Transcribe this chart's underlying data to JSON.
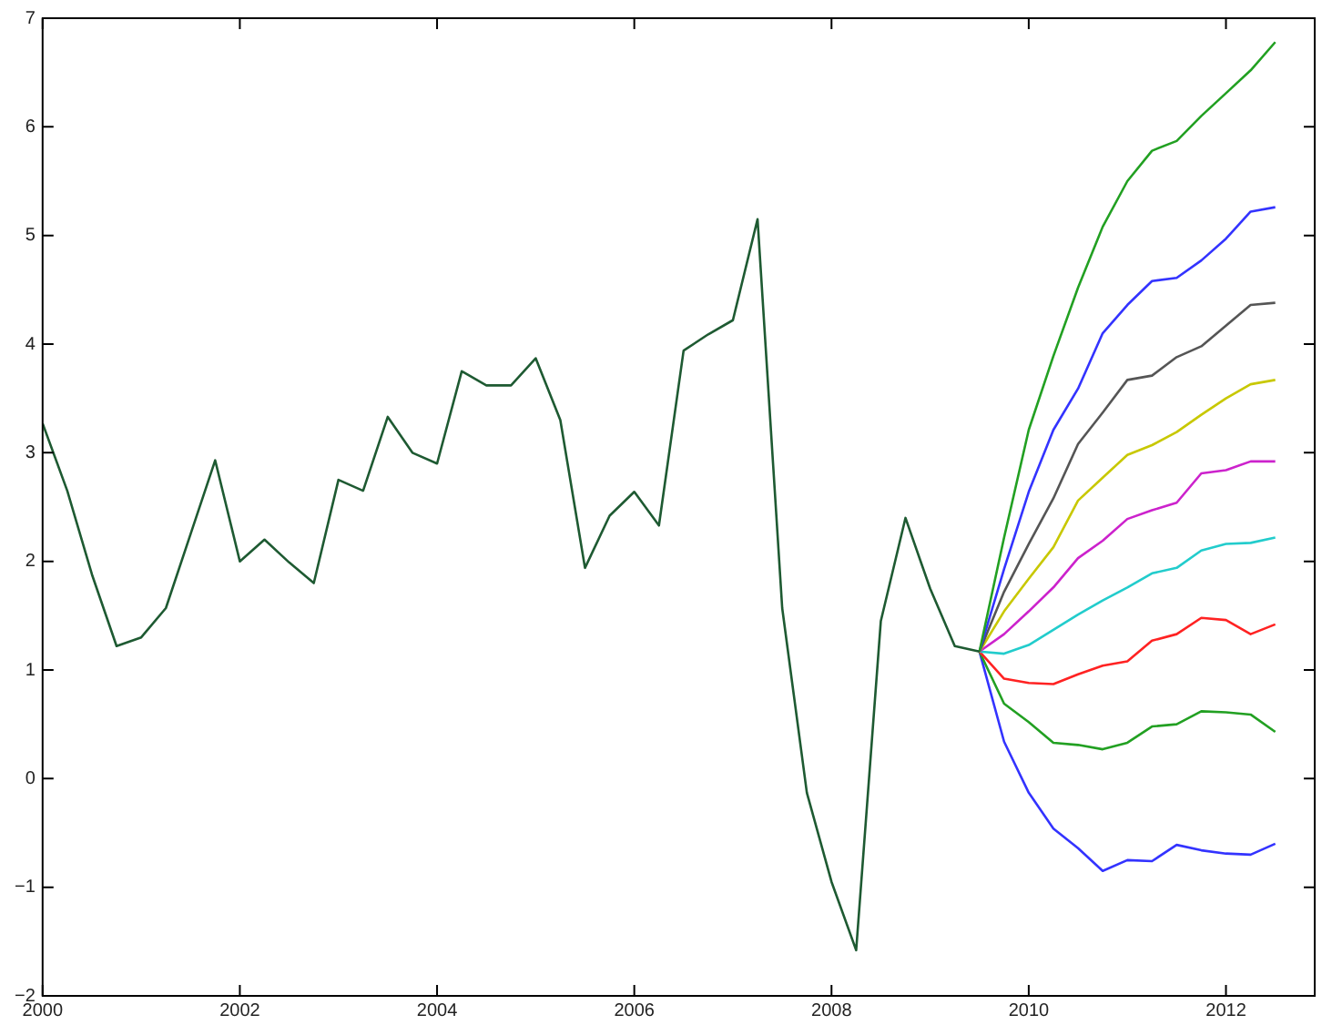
{
  "chart_data": {
    "type": "line",
    "marker": "none",
    "xlim": [
      2000,
      2012.9
    ],
    "xticks": [
      2000,
      2002,
      2004,
      2006,
      2008,
      2010,
      2012
    ],
    "ylim": [
      -2,
      7
    ],
    "yticks": [
      -2,
      -1,
      0,
      1,
      2,
      3,
      4,
      5,
      6,
      7
    ],
    "series": [
      {
        "color": "#1e5a32",
        "x": [
          2000,
          2000.25,
          2000.5,
          2000.75,
          2001,
          2001.25,
          2001.5,
          2001.75,
          2002,
          2002.25,
          2002.5,
          2002.75,
          2003,
          2003.25,
          2003.5,
          2003.75,
          2004,
          2004.25,
          2004.5,
          2004.75,
          2005,
          2005.25,
          2005.5,
          2005.75,
          2006,
          2006.25,
          2006.5,
          2006.75,
          2007,
          2007.25,
          2007.5,
          2007.75,
          2008,
          2008.25,
          2008.5,
          2008.75,
          2009,
          2009.25,
          2009.5
        ],
        "values": [
          3.27,
          2.65,
          1.88,
          1.22,
          1.3,
          1.57,
          2.25,
          2.93,
          2.0,
          2.2,
          1.99,
          1.8,
          2.75,
          2.65,
          3.33,
          3.0,
          2.9,
          3.75,
          3.62,
          3.62,
          3.87,
          3.3,
          1.94,
          2.42,
          2.64,
          2.33,
          3.94,
          4.09,
          4.22,
          5.15,
          1.57,
          -0.13,
          -0.95,
          -1.58,
          1.45,
          2.4,
          1.75,
          1.22,
          1.17
        ]
      },
      {
        "color": "#22a022",
        "x": [
          2009.5,
          2009.75,
          2010,
          2010.25,
          2010.5,
          2010.75,
          2011,
          2011.25,
          2011.5,
          2011.75,
          2012,
          2012.25,
          2012.5
        ],
        "values": [
          1.17,
          2.22,
          3.21,
          3.89,
          4.52,
          5.08,
          5.5,
          5.78,
          5.87,
          6.1,
          6.31,
          6.52,
          6.78
        ]
      },
      {
        "color": "#3333ff",
        "x": [
          2009.5,
          2009.75,
          2010,
          2010.25,
          2010.5,
          2010.75,
          2011,
          2011.25,
          2011.5,
          2011.75,
          2012,
          2012.25,
          2012.5
        ],
        "values": [
          1.17,
          1.93,
          2.64,
          3.21,
          3.59,
          4.1,
          4.36,
          4.58,
          4.61,
          4.77,
          4.97,
          5.22,
          5.26
        ]
      },
      {
        "color": "#555555",
        "x": [
          2009.5,
          2009.75,
          2010,
          2010.25,
          2010.5,
          2010.75,
          2011,
          2011.25,
          2011.5,
          2011.75,
          2012,
          2012.25,
          2012.5
        ],
        "values": [
          1.17,
          1.72,
          2.16,
          2.58,
          3.08,
          3.37,
          3.67,
          3.71,
          3.88,
          3.98,
          4.17,
          4.36,
          4.38
        ]
      },
      {
        "color": "#c8c800",
        "x": [
          2009.5,
          2009.75,
          2010,
          2010.25,
          2010.5,
          2010.75,
          2011,
          2011.25,
          2011.5,
          2011.75,
          2012,
          2012.25,
          2012.5
        ],
        "values": [
          1.17,
          1.54,
          1.84,
          2.13,
          2.56,
          2.77,
          2.98,
          3.07,
          3.19,
          3.35,
          3.5,
          3.63,
          3.67
        ]
      },
      {
        "color": "#cc22cc",
        "x": [
          2009.5,
          2009.75,
          2010,
          2010.25,
          2010.5,
          2010.75,
          2011,
          2011.25,
          2011.5,
          2011.75,
          2012,
          2012.25,
          2012.5
        ],
        "values": [
          1.17,
          1.33,
          1.54,
          1.76,
          2.03,
          2.19,
          2.39,
          2.47,
          2.54,
          2.81,
          2.84,
          2.92,
          2.92
        ]
      },
      {
        "color": "#22cccc",
        "x": [
          2009.5,
          2009.75,
          2010,
          2010.25,
          2010.5,
          2010.75,
          2011,
          2011.25,
          2011.5,
          2011.75,
          2012,
          2012.25,
          2012.5
        ],
        "values": [
          1.17,
          1.15,
          1.23,
          1.37,
          1.51,
          1.64,
          1.76,
          1.89,
          1.94,
          2.1,
          2.16,
          2.17,
          2.22
        ]
      },
      {
        "color": "#ff2222",
        "x": [
          2009.5,
          2009.75,
          2010,
          2010.25,
          2010.5,
          2010.75,
          2011,
          2011.25,
          2011.5,
          2011.75,
          2012,
          2012.25,
          2012.5
        ],
        "values": [
          1.17,
          0.92,
          0.88,
          0.87,
          0.96,
          1.04,
          1.08,
          1.27,
          1.33,
          1.48,
          1.46,
          1.33,
          1.42
        ]
      },
      {
        "color": "#22a022",
        "x": [
          2009.5,
          2009.75,
          2010,
          2010.25,
          2010.5,
          2010.75,
          2011,
          2011.25,
          2011.5,
          2011.75,
          2012,
          2012.25,
          2012.5
        ],
        "values": [
          1.17,
          0.69,
          0.52,
          0.33,
          0.31,
          0.27,
          0.33,
          0.48,
          0.5,
          0.62,
          0.61,
          0.59,
          0.43
        ]
      },
      {
        "color": "#3333ff",
        "x": [
          2009.5,
          2009.75,
          2010,
          2010.25,
          2010.5,
          2010.75,
          2011,
          2011.25,
          2011.5,
          2011.75,
          2012,
          2012.25,
          2012.5
        ],
        "values": [
          1.17,
          0.34,
          -0.13,
          -0.46,
          -0.64,
          -0.85,
          -0.75,
          -0.76,
          -0.61,
          -0.66,
          -0.69,
          -0.7,
          -0.6
        ]
      }
    ]
  }
}
